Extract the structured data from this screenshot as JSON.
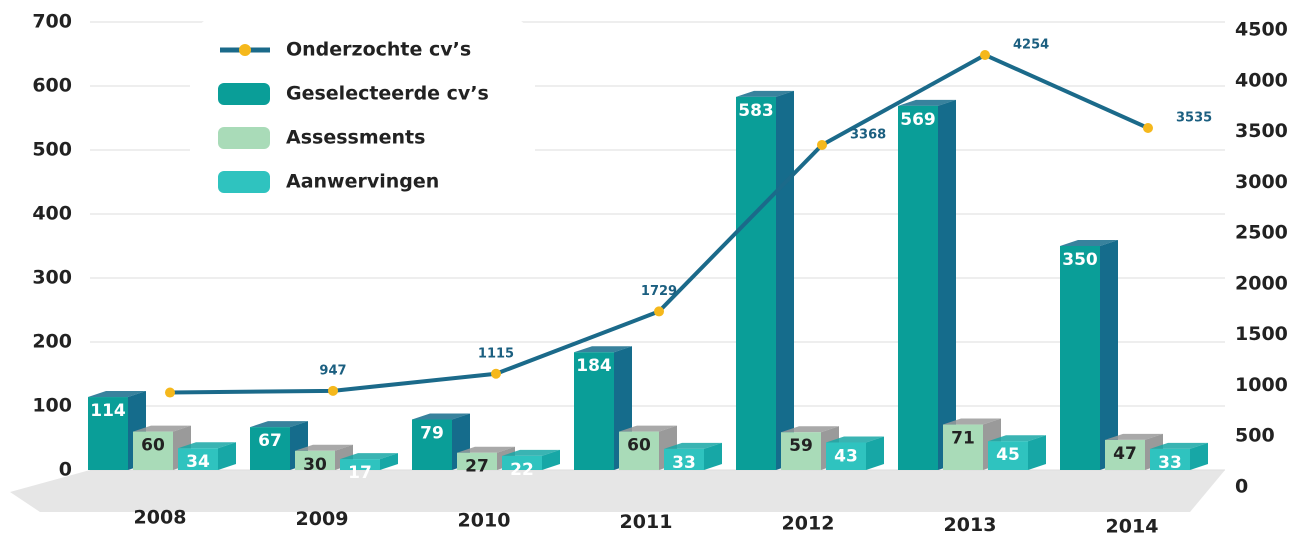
{
  "chart_data": {
    "type": "bar",
    "categories": [
      "2008",
      "2009",
      "2010",
      "2011",
      "2012",
      "2013",
      "2014"
    ],
    "series": [
      {
        "name": "Onderzochte cv’s",
        "type": "line",
        "axis": "y2",
        "color": "#1b6a8a",
        "values": [
          930,
          947,
          1115,
          1729,
          3368,
          4254,
          3535
        ],
        "value_labels": [
          null,
          "947",
          "1115",
          "1729",
          "3368",
          "4254",
          "3535"
        ]
      },
      {
        "name": "Geselecteerde cv’s",
        "type": "bar",
        "color": "#0a9e98",
        "values": [
          114,
          67,
          79,
          184,
          583,
          569,
          350
        ]
      },
      {
        "name": "Assessments",
        "type": "bar",
        "color": "#a9dbb8",
        "values": [
          60,
          30,
          27,
          60,
          59,
          71,
          47
        ]
      },
      {
        "name": "Aanwervingen",
        "type": "bar",
        "color": "#2fc3bf",
        "values": [
          34,
          17,
          22,
          33,
          43,
          45,
          33
        ]
      }
    ],
    "ylim": [
      0,
      700
    ],
    "yticks": [
      0,
      100,
      200,
      300,
      400,
      500,
      600,
      700
    ],
    "y2lim": [
      0,
      4500
    ],
    "y2ticks": [
      0,
      500,
      1000,
      1500,
      2000,
      2500,
      3000,
      3500,
      4000,
      4500
    ],
    "grid": true
  }
}
